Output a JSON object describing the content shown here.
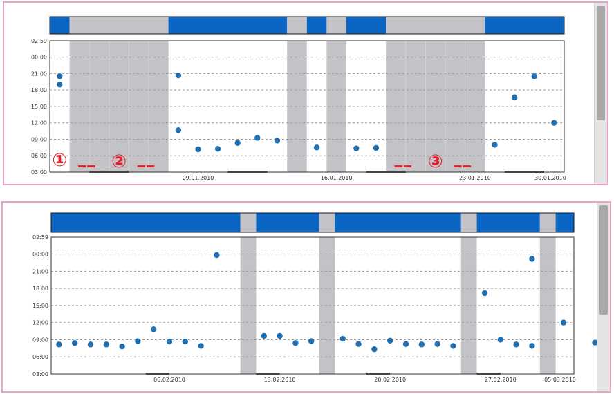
{
  "colors": {
    "timeline_active": "#0a66c2",
    "timeline_off": "#c3c3c7",
    "weekend_band": "#c3c3c7",
    "point": "#1f6fb3",
    "annotation": "#e6202a",
    "grid": "#999999",
    "axis": "#333333",
    "panel_border": "#e4a6c8",
    "scrollbar_thumb": "#a8a8a8"
  },
  "chart_data": [
    {
      "type": "scatter",
      "title": "",
      "xlabel": "",
      "ylabel": "",
      "xlim": [
        "2010-01-02",
        "2010-01-31"
      ],
      "ylim": [
        "03:00",
        "02:59 (+1 day)"
      ],
      "y_ticks": [
        "03:00",
        "06:00",
        "09:00",
        "12:00",
        "15:00",
        "18:00",
        "21:00",
        "00:00",
        "02:59"
      ],
      "x_ticks": [
        {
          "label": "09.01.2010",
          "date": "2010-01-09"
        },
        {
          "label": "16.01.2010",
          "date": "2010-01-16"
        },
        {
          "label": "23.01.2010",
          "date": "2010-01-23"
        },
        {
          "label": "30.01.2010",
          "date": "2010-01-30"
        }
      ],
      "grid": true,
      "timeline_status": [
        {
          "start": "2010-01-02",
          "end": "2010-01-03",
          "state": "active"
        },
        {
          "start": "2010-01-03",
          "end": "2010-01-08",
          "state": "off"
        },
        {
          "start": "2010-01-08",
          "end": "2010-01-14",
          "state": "active"
        },
        {
          "start": "2010-01-14",
          "end": "2010-01-15",
          "state": "off"
        },
        {
          "start": "2010-01-15",
          "end": "2010-01-16",
          "state": "active"
        },
        {
          "start": "2010-01-16",
          "end": "2010-01-17",
          "state": "off"
        },
        {
          "start": "2010-01-17",
          "end": "2010-01-19",
          "state": "active"
        },
        {
          "start": "2010-01-19",
          "end": "2010-01-24",
          "state": "off"
        },
        {
          "start": "2010-01-24",
          "end": "2010-01-31",
          "state": "active"
        }
      ],
      "off_periods": [
        {
          "start": "2010-01-03",
          "end": "2010-01-08"
        },
        {
          "start": "2010-01-14",
          "end": "2010-01-15"
        },
        {
          "start": "2010-01-16",
          "end": "2010-01-17"
        },
        {
          "start": "2010-01-19",
          "end": "2010-01-24"
        }
      ],
      "week_markers": [
        {
          "start": "2010-01-04",
          "end": "2010-01-06"
        },
        {
          "start": "2010-01-11",
          "end": "2010-01-13"
        },
        {
          "start": "2010-01-18",
          "end": "2010-01-20"
        },
        {
          "start": "2010-01-25",
          "end": "2010-01-27"
        }
      ],
      "points": [
        {
          "x": "2010-01-02",
          "y": "20:30"
        },
        {
          "x": "2010-01-02",
          "y": "19:00"
        },
        {
          "x": "2010-01-08",
          "y": "20:40"
        },
        {
          "x": "2010-01-08",
          "y": "10:40"
        },
        {
          "x": "2010-01-09",
          "y": "07:10"
        },
        {
          "x": "2010-01-10",
          "y": "07:15"
        },
        {
          "x": "2010-01-11",
          "y": "08:20"
        },
        {
          "x": "2010-01-12",
          "y": "09:15"
        },
        {
          "x": "2010-01-13",
          "y": "08:45"
        },
        {
          "x": "2010-01-15",
          "y": "07:30"
        },
        {
          "x": "2010-01-17",
          "y": "07:20"
        },
        {
          "x": "2010-01-18",
          "y": "07:25"
        },
        {
          "x": "2010-01-24",
          "y": "08:00"
        },
        {
          "x": "2010-01-25",
          "y": "16:40"
        },
        {
          "x": "2010-01-26",
          "y": "20:30"
        },
        {
          "x": "2010-01-27",
          "y": "12:00"
        }
      ],
      "annotations": [
        {
          "label": "①",
          "x": "2010-01-02",
          "y": "05:15"
        },
        {
          "label": "②",
          "x": "2010-01-05",
          "y": "05:00"
        },
        {
          "label": "③",
          "x": "2010-01-21",
          "y": "05:00"
        }
      ],
      "dash_marks": [
        {
          "start": "2010-01-03",
          "end": "2010-01-04",
          "y": "04:00"
        },
        {
          "start": "2010-01-06",
          "end": "2010-01-07",
          "y": "04:00"
        },
        {
          "start": "2010-01-19",
          "end": "2010-01-20",
          "y": "04:00"
        },
        {
          "start": "2010-01-22",
          "end": "2010-01-23",
          "y": "04:00"
        }
      ]
    },
    {
      "type": "scatter",
      "title": "",
      "xlabel": "",
      "ylabel": "",
      "xlim": [
        "2010-01-30",
        "2010-03-06"
      ],
      "ylim": [
        "03:00",
        "02:59 (+1 day)"
      ],
      "y_ticks": [
        "03:00",
        "06:00",
        "09:00",
        "12:00",
        "15:00",
        "18:00",
        "21:00",
        "00:00",
        "02:59"
      ],
      "x_ticks": [
        {
          "label": "06.02.2010",
          "date": "2010-02-06"
        },
        {
          "label": "13.02.2010",
          "date": "2010-02-13"
        },
        {
          "label": "20.02.2010",
          "date": "2010-02-20"
        },
        {
          "label": "27.02.2010",
          "date": "2010-02-27"
        },
        {
          "label": "05.03.2010",
          "date": "2010-03-05"
        }
      ],
      "grid": true,
      "timeline_status": [
        {
          "start": "2010-01-30",
          "end": "2010-02-11",
          "state": "active"
        },
        {
          "start": "2010-02-11",
          "end": "2010-02-12",
          "state": "off"
        },
        {
          "start": "2010-02-12",
          "end": "2010-02-16",
          "state": "active"
        },
        {
          "start": "2010-02-16",
          "end": "2010-02-17",
          "state": "off"
        },
        {
          "start": "2010-02-17",
          "end": "2010-02-25",
          "state": "active"
        },
        {
          "start": "2010-02-25",
          "end": "2010-02-26",
          "state": "off"
        },
        {
          "start": "2010-02-26",
          "end": "2010-03-02",
          "state": "active"
        },
        {
          "start": "2010-03-02",
          "end": "2010-03-03",
          "state": "off"
        },
        {
          "start": "2010-03-03",
          "end": "2010-03-06",
          "state": "active"
        }
      ],
      "off_periods": [
        {
          "start": "2010-02-11",
          "end": "2010-02-12"
        },
        {
          "start": "2010-02-16",
          "end": "2010-02-17"
        },
        {
          "start": "2010-02-25",
          "end": "2010-02-26"
        },
        {
          "start": "2010-03-02",
          "end": "2010-03-03"
        }
      ],
      "week_markers": [
        {
          "start": "2010-02-05",
          "end": "2010-02-06.5"
        },
        {
          "start": "2010-02-12",
          "end": "2010-02-13.5"
        },
        {
          "start": "2010-02-19",
          "end": "2010-02-20.5"
        },
        {
          "start": "2010-02-26",
          "end": "2010-02-27.5"
        }
      ],
      "points": [
        {
          "x": "2010-01-30",
          "y": "08:10"
        },
        {
          "x": "2010-01-31",
          "y": "08:25"
        },
        {
          "x": "2010-02-01",
          "y": "08:10"
        },
        {
          "x": "2010-02-02",
          "y": "08:10"
        },
        {
          "x": "2010-02-03",
          "y": "07:50"
        },
        {
          "x": "2010-02-04",
          "y": "08:45"
        },
        {
          "x": "2010-02-05",
          "y": "10:50"
        },
        {
          "x": "2010-02-06",
          "y": "08:40"
        },
        {
          "x": "2010-02-07",
          "y": "08:40"
        },
        {
          "x": "2010-02-08",
          "y": "07:55"
        },
        {
          "x": "2010-02-09",
          "y": "23:50"
        },
        {
          "x": "2010-02-12",
          "y": "09:40"
        },
        {
          "x": "2010-02-13",
          "y": "09:40"
        },
        {
          "x": "2010-02-14",
          "y": "08:25"
        },
        {
          "x": "2010-02-15",
          "y": "08:45"
        },
        {
          "x": "2010-02-17",
          "y": "09:10"
        },
        {
          "x": "2010-02-18",
          "y": "08:15"
        },
        {
          "x": "2010-02-19",
          "y": "07:20"
        },
        {
          "x": "2010-02-20",
          "y": "08:50"
        },
        {
          "x": "2010-02-21",
          "y": "08:15"
        },
        {
          "x": "2010-02-22",
          "y": "08:10"
        },
        {
          "x": "2010-02-23",
          "y": "08:15"
        },
        {
          "x": "2010-02-24",
          "y": "07:55"
        },
        {
          "x": "2010-02-26",
          "y": "17:10"
        },
        {
          "x": "2010-02-27",
          "y": "09:00"
        },
        {
          "x": "2010-02-28",
          "y": "08:10"
        },
        {
          "x": "2010-03-01",
          "y": "23:10"
        },
        {
          "x": "2010-03-01",
          "y": "07:55"
        },
        {
          "x": "2010-03-03",
          "y": "12:00"
        },
        {
          "x": "2010-03-05",
          "y": "08:30"
        }
      ]
    }
  ]
}
